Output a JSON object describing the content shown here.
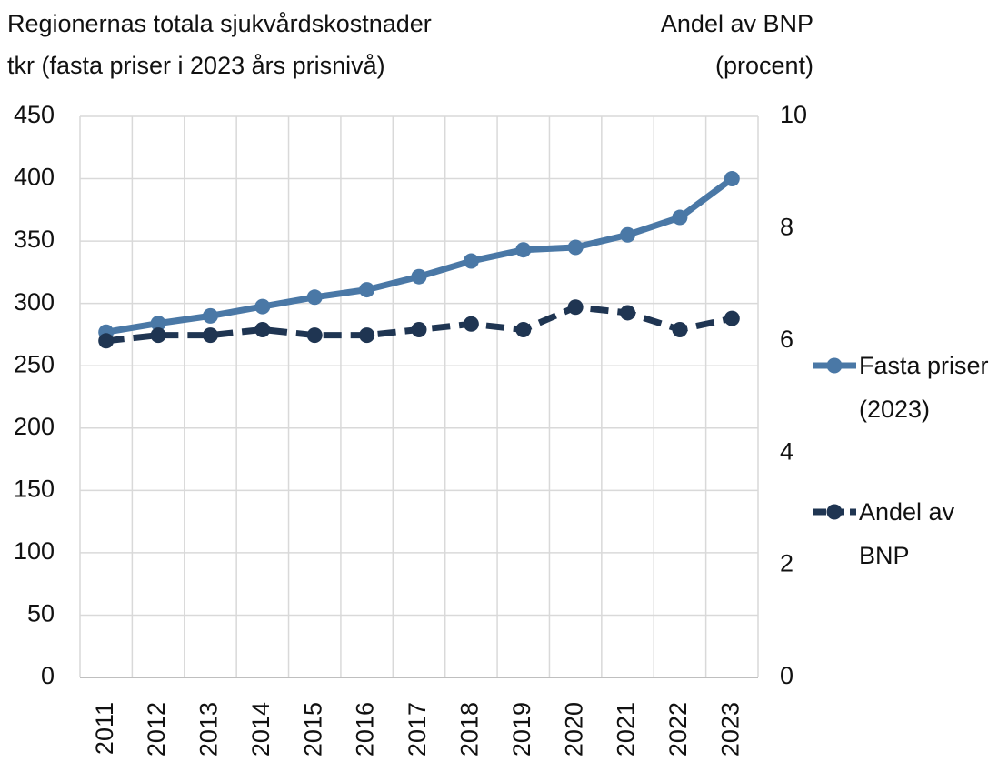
{
  "chart_data": {
    "type": "line",
    "ylabel": [
      "Regionernas totala sjukvårdskostnader",
      "tkr (fasta priser i 2023 års prisnivå)"
    ],
    "y2label": [
      "Andel av BNP",
      "(procent)"
    ],
    "categories": [
      "2011",
      "2012",
      "2013",
      "2014",
      "2015",
      "2016",
      "2017",
      "2018",
      "2019",
      "2020",
      "2021",
      "2022",
      "2023"
    ],
    "series": [
      {
        "name": "Fasta priser (2023)",
        "color": "#4a78a6",
        "dashed": false,
        "values": [
          277,
          284,
          290,
          297.5,
          305,
          311,
          321.5,
          334,
          343,
          345,
          355,
          369,
          400
        ]
      },
      {
        "name": "Andel av BNP",
        "color": "#1f3552",
        "dashed": true,
        "axis": "y2",
        "values": [
          6.0,
          6.1,
          6.1,
          6.2,
          6.1,
          6.1,
          6.2,
          6.3,
          6.2,
          6.6,
          6.5,
          6.2,
          6.4
        ]
      }
    ],
    "ylim": [
      0,
      450
    ],
    "yticks": [
      0,
      50,
      100,
      150,
      200,
      250,
      300,
      350,
      400,
      450
    ],
    "y2lim": [
      0,
      10
    ],
    "y2ticks": [
      0,
      2,
      4,
      6,
      8,
      10
    ],
    "grid": true
  }
}
